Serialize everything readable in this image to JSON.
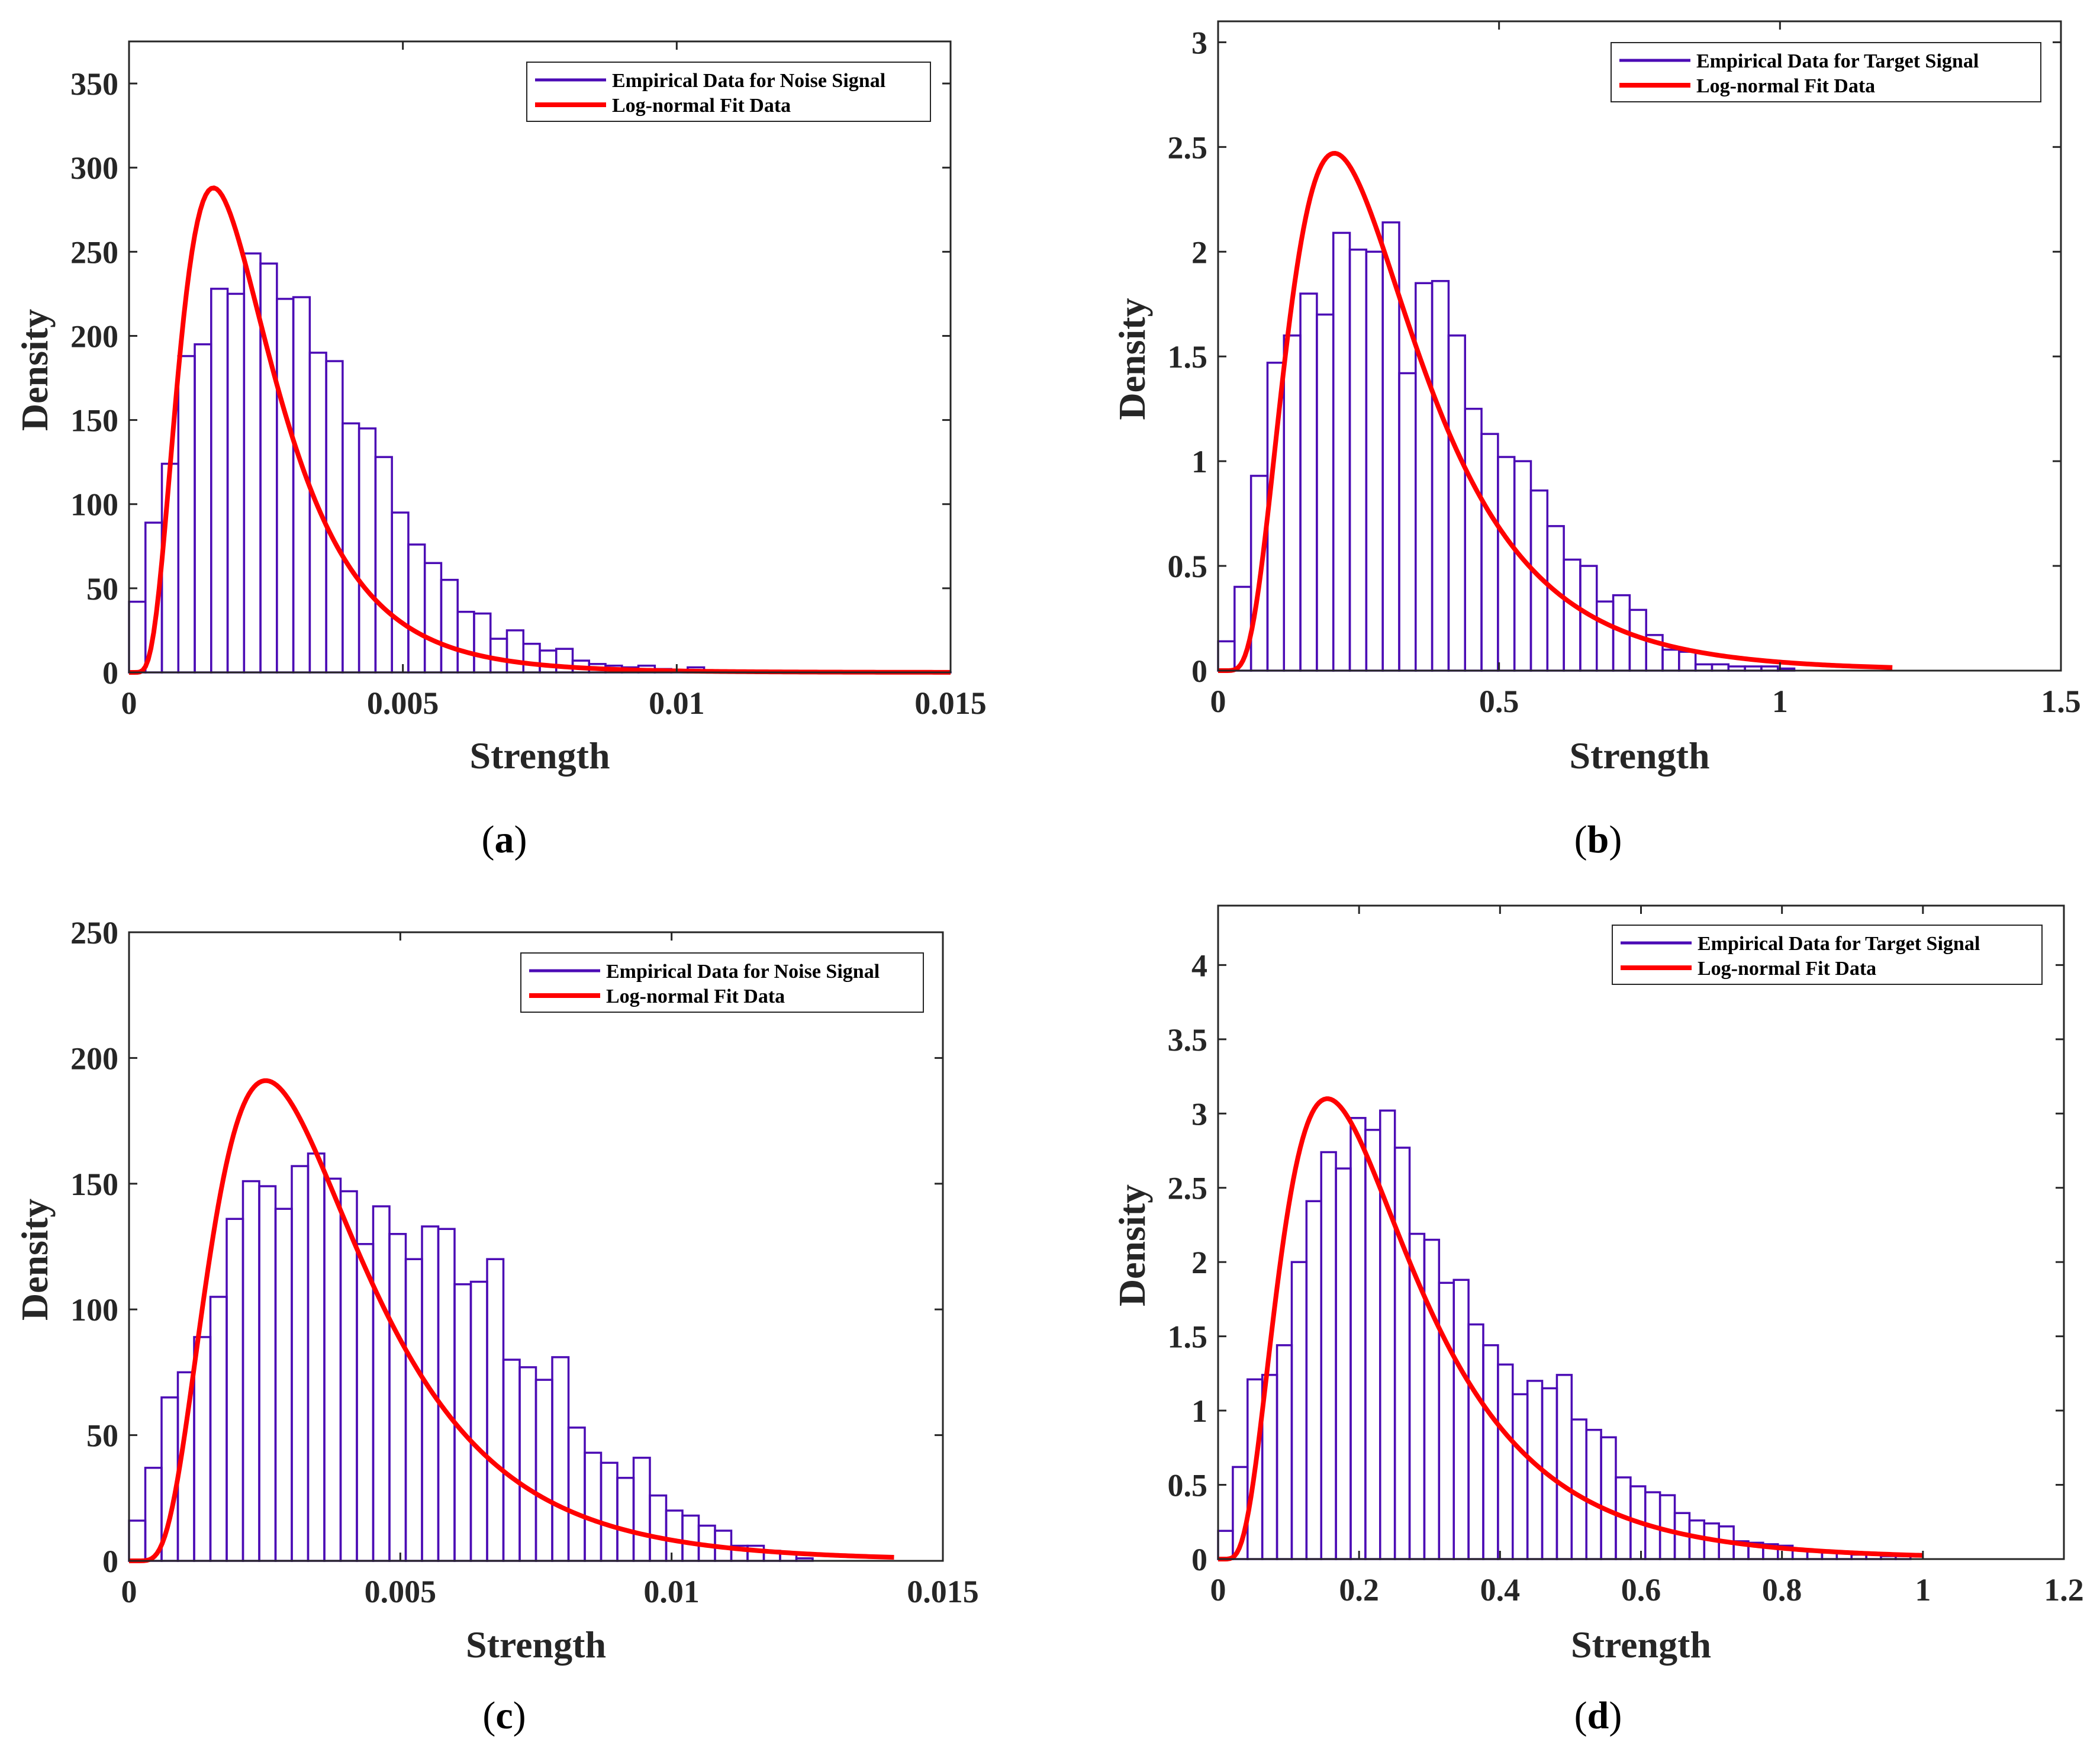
{
  "colors": {
    "bar": "#4b0bb5",
    "fit": "#ff0000",
    "axis": "#262626"
  },
  "chart_data": [
    {
      "type": "bar",
      "title": "",
      "caption": "a",
      "xlabel": "Strength",
      "ylabel": "Density",
      "xlim": [
        0,
        0.015
      ],
      "ylim": [
        0,
        375
      ],
      "xticks": [
        0,
        0.005,
        0.01,
        0.015
      ],
      "xtick_labels": [
        "0",
        "0.005",
        "0.01",
        "0.015"
      ],
      "yticks": [
        0,
        50,
        100,
        150,
        200,
        250,
        300,
        350
      ],
      "ytick_labels": [
        "0",
        "50",
        "100",
        "150",
        "200",
        "250",
        "300",
        "350"
      ],
      "legend": {
        "position": "top-right",
        "entries": [
          "Empirical Data for Noise Signal",
          "Log-normal Fit Data"
        ]
      },
      "series": [
        {
          "name": "Empirical Data for Noise Signal",
          "kind": "histogram",
          "bin_start": 0,
          "bin_width": 0.0003,
          "values": [
            42,
            89,
            124,
            188,
            195,
            228,
            225,
            249,
            243,
            222,
            223,
            190,
            185,
            148,
            145,
            128,
            95,
            76,
            65,
            55,
            36,
            35,
            20,
            25,
            17,
            13,
            14,
            7,
            5,
            4,
            3,
            4,
            2,
            1,
            3,
            1,
            1,
            1,
            0.5,
            0.5,
            0.5,
            0.5,
            0.3,
            0.3,
            0.2,
            0.2,
            0.1,
            0.1,
            0.1,
            0.1
          ]
        },
        {
          "name": "Log-normal Fit Data",
          "kind": "curve",
          "x_range": [
            0,
            0.015
          ],
          "peak_x": 0.00154,
          "peak_y": 288
        }
      ]
    },
    {
      "type": "bar",
      "title": "",
      "caption": "b",
      "xlabel": "Strength",
      "ylabel": "Density",
      "xlim": [
        0,
        1.5
      ],
      "ylim": [
        0,
        3.1
      ],
      "xticks": [
        0,
        0.5,
        1,
        1.5
      ],
      "xtick_labels": [
        "0",
        "0.5",
        "1",
        "1.5"
      ],
      "yticks": [
        0,
        0.5,
        1,
        1.5,
        2,
        2.5,
        3
      ],
      "ytick_labels": [
        "0",
        "0.5",
        "1",
        "1.5",
        "2",
        "2.5",
        "3"
      ],
      "legend": {
        "position": "top-right",
        "entries": [
          "Empirical Data for Target Signal",
          "Log-normal Fit Data"
        ]
      },
      "series": [
        {
          "name": "Empirical Data for Target Signal",
          "kind": "histogram",
          "bin_start": 0,
          "bin_width": 0.0293,
          "values": [
            0.14,
            0.4,
            0.93,
            1.47,
            1.6,
            1.8,
            1.7,
            2.09,
            2.01,
            2.0,
            2.14,
            1.42,
            1.85,
            1.86,
            1.6,
            1.25,
            1.13,
            1.02,
            1.0,
            0.86,
            0.69,
            0.53,
            0.5,
            0.33,
            0.36,
            0.29,
            0.17,
            0.1,
            0.09,
            0.03,
            0.03,
            0.02,
            0.02,
            0.02,
            0.01
          ]
        },
        {
          "name": "Log-normal Fit Data",
          "kind": "curve",
          "x_range": [
            0,
            1.2
          ],
          "peak_x": 0.207,
          "peak_y": 2.47
        }
      ]
    },
    {
      "type": "bar",
      "title": "",
      "caption": "c",
      "xlabel": "Strength",
      "ylabel": "Density",
      "xlim": [
        0,
        0.015
      ],
      "ylim": [
        0,
        250
      ],
      "xticks": [
        0,
        0.005,
        0.01,
        0.015
      ],
      "xtick_labels": [
        "0",
        "0.005",
        "0.01",
        "0.015"
      ],
      "yticks": [
        0,
        50,
        100,
        150,
        200,
        250
      ],
      "ytick_labels": [
        "0",
        "50",
        "100",
        "150",
        "200",
        "250"
      ],
      "legend": {
        "position": "top-right",
        "entries": [
          "Empirical Data for Noise Signal",
          "Log-normal Fit Data"
        ]
      },
      "series": [
        {
          "name": "Empirical Data for Noise Signal",
          "kind": "histogram",
          "bin_start": 0,
          "bin_width": 0.0003,
          "values": [
            16,
            37,
            65,
            75,
            89,
            105,
            136,
            151,
            149,
            140,
            157,
            162,
            152,
            147,
            126,
            141,
            130,
            120,
            133,
            132,
            110,
            111,
            120,
            80,
            77,
            72,
            81,
            53,
            43,
            39,
            33,
            41,
            26,
            20,
            18,
            14,
            12,
            6,
            6,
            4,
            3,
            1
          ]
        },
        {
          "name": "Log-normal Fit Data",
          "kind": "curve",
          "x_range": [
            0,
            0.0141
          ],
          "peak_x": 0.00252,
          "peak_y": 191
        }
      ]
    },
    {
      "type": "bar",
      "title": "",
      "caption": "d",
      "xlabel": "Strength",
      "ylabel": "Density",
      "xlim": [
        0,
        1.2
      ],
      "ylim": [
        0,
        4.4
      ],
      "xticks": [
        0,
        0.2,
        0.4,
        0.6,
        0.8,
        1,
        1.2
      ],
      "xtick_labels": [
        "0",
        "0.2",
        "0.4",
        "0.6",
        "0.8",
        "1",
        "1.2"
      ],
      "yticks": [
        0,
        0.5,
        1,
        1.5,
        2,
        2.5,
        3,
        3.5,
        4
      ],
      "ytick_labels": [
        "0",
        "0.5",
        "1",
        "1.5",
        "2",
        "2.5",
        "3",
        "3.5",
        "4"
      ],
      "legend": {
        "position": "top-right",
        "entries": [
          "Empirical Data for Target Signal",
          "Log-normal Fit Data"
        ]
      },
      "series": [
        {
          "name": "Empirical Data for Target Signal",
          "kind": "histogram",
          "bin_start": 0,
          "bin_width": 0.0209,
          "values": [
            0.19,
            0.62,
            1.21,
            1.24,
            1.44,
            2.0,
            2.41,
            2.74,
            2.63,
            2.97,
            2.89,
            3.02,
            2.77,
            2.19,
            2.15,
            1.86,
            1.88,
            1.58,
            1.44,
            1.31,
            1.11,
            1.2,
            1.15,
            1.24,
            0.94,
            0.87,
            0.82,
            0.55,
            0.49,
            0.45,
            0.43,
            0.31,
            0.26,
            0.24,
            0.22,
            0.12,
            0.11,
            0.1,
            0.09,
            0.06,
            0.05,
            0.05,
            0.04,
            0.03,
            0.03,
            0.02,
            0.02
          ]
        },
        {
          "name": "Log-normal Fit Data",
          "kind": "curve",
          "x_range": [
            0,
            1.0
          ],
          "peak_x": 0.155,
          "peak_y": 3.1
        }
      ]
    }
  ]
}
